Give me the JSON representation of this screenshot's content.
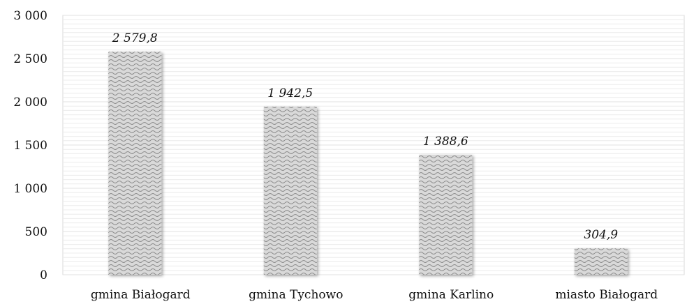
{
  "chart_data": {
    "type": "bar",
    "categories": [
      "gmina Białogard",
      "gmina Tychowo",
      "gmina Karlino",
      "miasto Białogard"
    ],
    "values": [
      2579.8,
      1942.5,
      1388.6,
      304.9
    ],
    "data_labels": [
      "2 579,8",
      "1 942,5",
      "1 388,6",
      "304,9"
    ],
    "title": "",
    "xlabel": "",
    "ylabel": "",
    "ylim": [
      0,
      3000
    ],
    "yticks": [
      0,
      500,
      1000,
      1500,
      2000,
      2500,
      3000
    ],
    "ytick_labels": [
      "0",
      "500",
      "1 000",
      "1 500",
      "2 000",
      "2 500",
      "3 000"
    ],
    "grid": true,
    "legend": "none",
    "bar_pattern": "wave",
    "colors": {
      "bar_fill": "#d9d9d9",
      "bar_pattern": "#8c8c8c",
      "grid": "#e0e0e0",
      "frame": "#d9d9d9"
    }
  }
}
